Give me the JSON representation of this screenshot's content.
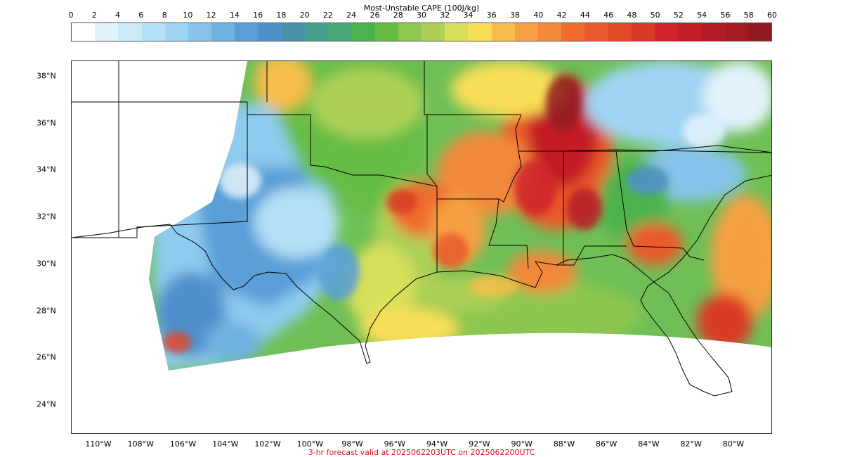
{
  "colorbar": {
    "title": "Most-Unstable CAPE (100J/kg)",
    "ticks": [
      "0",
      "2",
      "4",
      "6",
      "8",
      "10",
      "12",
      "14",
      "16",
      "18",
      "20",
      "22",
      "24",
      "26",
      "28",
      "30",
      "32",
      "34",
      "36",
      "38",
      "40",
      "42",
      "44",
      "46",
      "48",
      "50",
      "52",
      "54",
      "56",
      "58",
      "60"
    ],
    "colors": [
      "#ffffff",
      "#e3f3fc",
      "#cce9f8",
      "#b3e0f6",
      "#9fd4f3",
      "#87c3ea",
      "#70b2e0",
      "#5a9fd8",
      "#4f8fcc",
      "#4892a8",
      "#479d8f",
      "#4aa676",
      "#4cb24e",
      "#66bd44",
      "#8dc650",
      "#acd057",
      "#d7df5a",
      "#f7de56",
      "#f6bd4b",
      "#f4a043",
      "#f2883a",
      "#ee6c2e",
      "#ea5a2a",
      "#e24a29",
      "#d93a28",
      "#cf2429",
      "#c31e27",
      "#b51b26",
      "#a61a24",
      "#921b22"
    ]
  },
  "map": {
    "latitude_labels": [
      {
        "text": "38°N",
        "lat": 38
      },
      {
        "text": "36°N",
        "lat": 36
      },
      {
        "text": "34°N",
        "lat": 34
      },
      {
        "text": "32°N",
        "lat": 32
      },
      {
        "text": "30°N",
        "lat": 30
      },
      {
        "text": "28°N",
        "lat": 28
      },
      {
        "text": "26°N",
        "lat": 26
      },
      {
        "text": "24°N",
        "lat": 24
      }
    ],
    "longitude_labels": [
      {
        "text": "110°W",
        "lon": -110
      },
      {
        "text": "108°W",
        "lon": -108
      },
      {
        "text": "106°W",
        "lon": -106
      },
      {
        "text": "104°W",
        "lon": -104
      },
      {
        "text": "102°W",
        "lon": -102
      },
      {
        "text": "100°W",
        "lon": -100
      },
      {
        "text": "98°W",
        "lon": -98
      },
      {
        "text": "96°W",
        "lon": -96
      },
      {
        "text": "94°W",
        "lon": -94
      },
      {
        "text": "92°W",
        "lon": -92
      },
      {
        "text": "90°W",
        "lon": -90
      },
      {
        "text": "88°W",
        "lon": -88
      },
      {
        "text": "86°W",
        "lon": -86
      },
      {
        "text": "84°W",
        "lon": -84
      },
      {
        "text": "82°W",
        "lon": -82
      },
      {
        "text": "80°W",
        "lon": -80
      }
    ]
  },
  "footer": "3-hr forecast valid at 2025062203UTC on 2025062200UTC"
}
